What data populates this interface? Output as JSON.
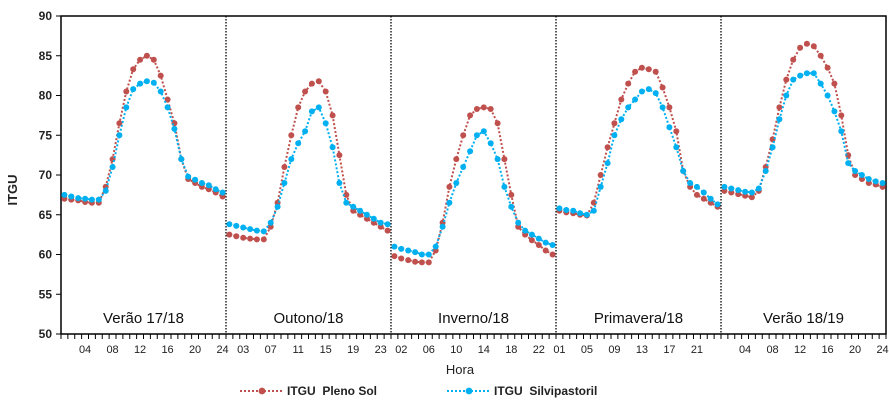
{
  "chart_data": {
    "type": "line",
    "ylabel": "ITGU",
    "xlabel": "Hora",
    "ylim": [
      50,
      90
    ],
    "yticks": [
      50,
      55,
      60,
      65,
      70,
      75,
      80,
      85,
      90
    ],
    "grid": false,
    "legend_position": "bottom",
    "x": [
      1,
      2,
      3,
      4,
      5,
      6,
      7,
      8,
      9,
      10,
      11,
      12,
      13,
      14,
      15,
      16,
      17,
      18,
      19,
      20,
      21,
      22,
      23,
      24
    ],
    "panels": [
      {
        "label": "Verão 17/18",
        "tick_labels": [
          "04",
          "08",
          "12",
          "16",
          "20",
          "24"
        ],
        "tick_hours": [
          4,
          8,
          12,
          16,
          20,
          24
        ],
        "series": [
          {
            "name": "ITGU  Pleno Sol",
            "values": [
              67.0,
              66.9,
              66.8,
              66.6,
              66.5,
              66.5,
              68.5,
              72.0,
              76.5,
              80.5,
              83.3,
              84.5,
              85.0,
              84.5,
              82.5,
              79.5,
              76.5,
              72.0,
              69.5,
              69.0,
              68.5,
              68.2,
              67.8,
              67.3
            ]
          },
          {
            "name": "ITGU  Silvipastoril",
            "values": [
              67.5,
              67.3,
              67.1,
              67.0,
              66.9,
              66.9,
              68.0,
              71.0,
              75.0,
              78.5,
              80.8,
              81.5,
              81.8,
              81.6,
              80.5,
              78.5,
              75.8,
              72.0,
              69.8,
              69.4,
              69.0,
              68.7,
              68.2,
              67.8
            ]
          }
        ]
      },
      {
        "label": "Outono/18",
        "tick_labels": [
          "03",
          "07",
          "11",
          "15",
          "19",
          "23"
        ],
        "tick_hours": [
          3,
          7,
          11,
          15,
          19,
          23
        ],
        "series": [
          {
            "name": "ITGU  Pleno Sol",
            "values": [
              62.5,
              62.3,
              62.1,
              62.0,
              61.9,
              61.9,
              63.5,
              66.5,
              71.0,
              75.0,
              78.5,
              80.5,
              81.5,
              81.8,
              80.5,
              77.5,
              72.5,
              67.5,
              65.5,
              65.0,
              64.5,
              64.0,
              63.5,
              63.0
            ]
          },
          {
            "name": "ITGU  Silvipastoril",
            "values": [
              63.8,
              63.6,
              63.4,
              63.2,
              63.0,
              62.9,
              64.0,
              66.0,
              69.0,
              72.0,
              74.0,
              75.5,
              78.0,
              78.5,
              76.5,
              73.5,
              69.0,
              66.5,
              66.0,
              65.5,
              65.0,
              64.5,
              64.0,
              63.8
            ]
          }
        ]
      },
      {
        "label": "Inverno/18",
        "tick_labels": [
          "02",
          "06",
          "10",
          "14",
          "18",
          "22"
        ],
        "tick_hours": [
          2,
          6,
          10,
          14,
          18,
          22
        ],
        "series": [
          {
            "name": "ITGU  Pleno Sol",
            "values": [
              59.8,
              59.5,
              59.3,
              59.1,
              59.0,
              59.0,
              60.5,
              64.0,
              68.5,
              72.0,
              75.0,
              77.5,
              78.3,
              78.5,
              78.3,
              76.5,
              72.0,
              67.5,
              63.5,
              62.5,
              61.8,
              61.2,
              60.5,
              60.0
            ]
          },
          {
            "name": "ITGU  Silvipastoril",
            "values": [
              61.0,
              60.7,
              60.5,
              60.3,
              60.0,
              60.0,
              61.0,
              63.5,
              66.5,
              69.0,
              71.0,
              73.0,
              75.0,
              75.5,
              74.0,
              72.0,
              68.5,
              66.0,
              64.0,
              63.0,
              62.5,
              62.0,
              61.5,
              61.2
            ]
          }
        ]
      },
      {
        "label": "Primavera/18",
        "tick_labels": [
          "01",
          "05",
          "09",
          "13",
          "17",
          "21"
        ],
        "tick_hours": [
          1,
          5,
          9,
          13,
          17,
          21
        ],
        "series": [
          {
            "name": "ITGU  Pleno Sol",
            "values": [
              65.5,
              65.3,
              65.2,
              65.0,
              64.9,
              66.5,
              70.0,
              73.5,
              76.5,
              79.5,
              81.5,
              83.0,
              83.5,
              83.3,
              83.0,
              81.0,
              78.5,
              75.5,
              70.5,
              68.5,
              67.5,
              67.0,
              66.5,
              66.0
            ]
          },
          {
            "name": "ITGU  Silvipastoril",
            "values": [
              65.8,
              65.6,
              65.5,
              65.2,
              65.0,
              65.5,
              68.5,
              71.5,
              75.0,
              77.0,
              78.5,
              79.5,
              80.5,
              80.8,
              80.3,
              78.5,
              76.0,
              73.5,
              70.5,
              69.0,
              68.5,
              67.8,
              67.0,
              66.3
            ]
          }
        ]
      },
      {
        "label": "Verão 18/19",
        "tick_labels": [
          "04",
          "08",
          "12",
          "16",
          "20",
          "24"
        ],
        "tick_hours": [
          4,
          8,
          12,
          16,
          20,
          24
        ],
        "series": [
          {
            "name": "ITGU  Pleno Sol",
            "values": [
              68.0,
              67.8,
              67.6,
              67.4,
              67.2,
              68.0,
              71.0,
              74.5,
              78.5,
              82.0,
              84.5,
              86.0,
              86.5,
              86.2,
              85.0,
              83.5,
              81.5,
              77.5,
              72.5,
              70.0,
              69.5,
              69.0,
              68.8,
              68.5
            ]
          },
          {
            "name": "ITGU  Silvipastoril",
            "values": [
              68.5,
              68.3,
              68.1,
              67.9,
              67.8,
              68.3,
              70.5,
              73.5,
              77.0,
              80.0,
              82.0,
              82.5,
              82.8,
              82.8,
              81.5,
              80.0,
              78.0,
              75.5,
              71.5,
              70.5,
              70.0,
              69.5,
              69.2,
              69.0
            ]
          }
        ]
      }
    ]
  },
  "legend": {
    "items": [
      {
        "label": "ITGU  Pleno Sol",
        "color": "#c0504d"
      },
      {
        "label": "ITGU  Silvipastoril",
        "color": "#00b0f0"
      }
    ]
  },
  "colors": {
    "pleno_sol": "#c0504d",
    "silvipastoril": "#00b0f0"
  }
}
